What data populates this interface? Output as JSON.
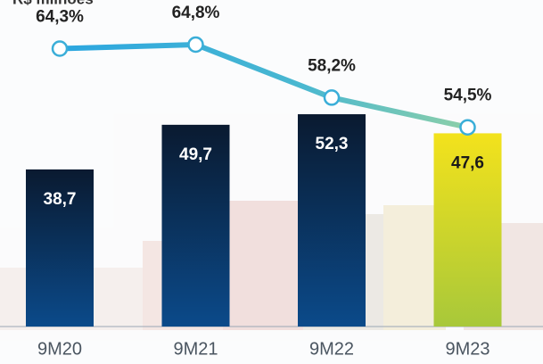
{
  "chart_data": {
    "type": "bar",
    "unit_label": "R$ milhões",
    "categories": [
      "9M20",
      "9M21",
      "9M22",
      "9M23"
    ],
    "values": [
      38.7,
      49.7,
      52.3,
      47.6
    ],
    "value_labels": [
      "38,7",
      "49,7",
      "52,3",
      "47,6"
    ],
    "colors": [
      "#0b4a8a",
      "#0b4a8a",
      "#0b4a8a",
      "#a8c83a"
    ],
    "line": {
      "values": [
        64.3,
        64.8,
        58.2,
        54.5
      ],
      "value_labels": [
        "64,3%",
        "64,8%",
        "58,2%",
        "54,5%"
      ],
      "color": "#3aaed8"
    }
  }
}
